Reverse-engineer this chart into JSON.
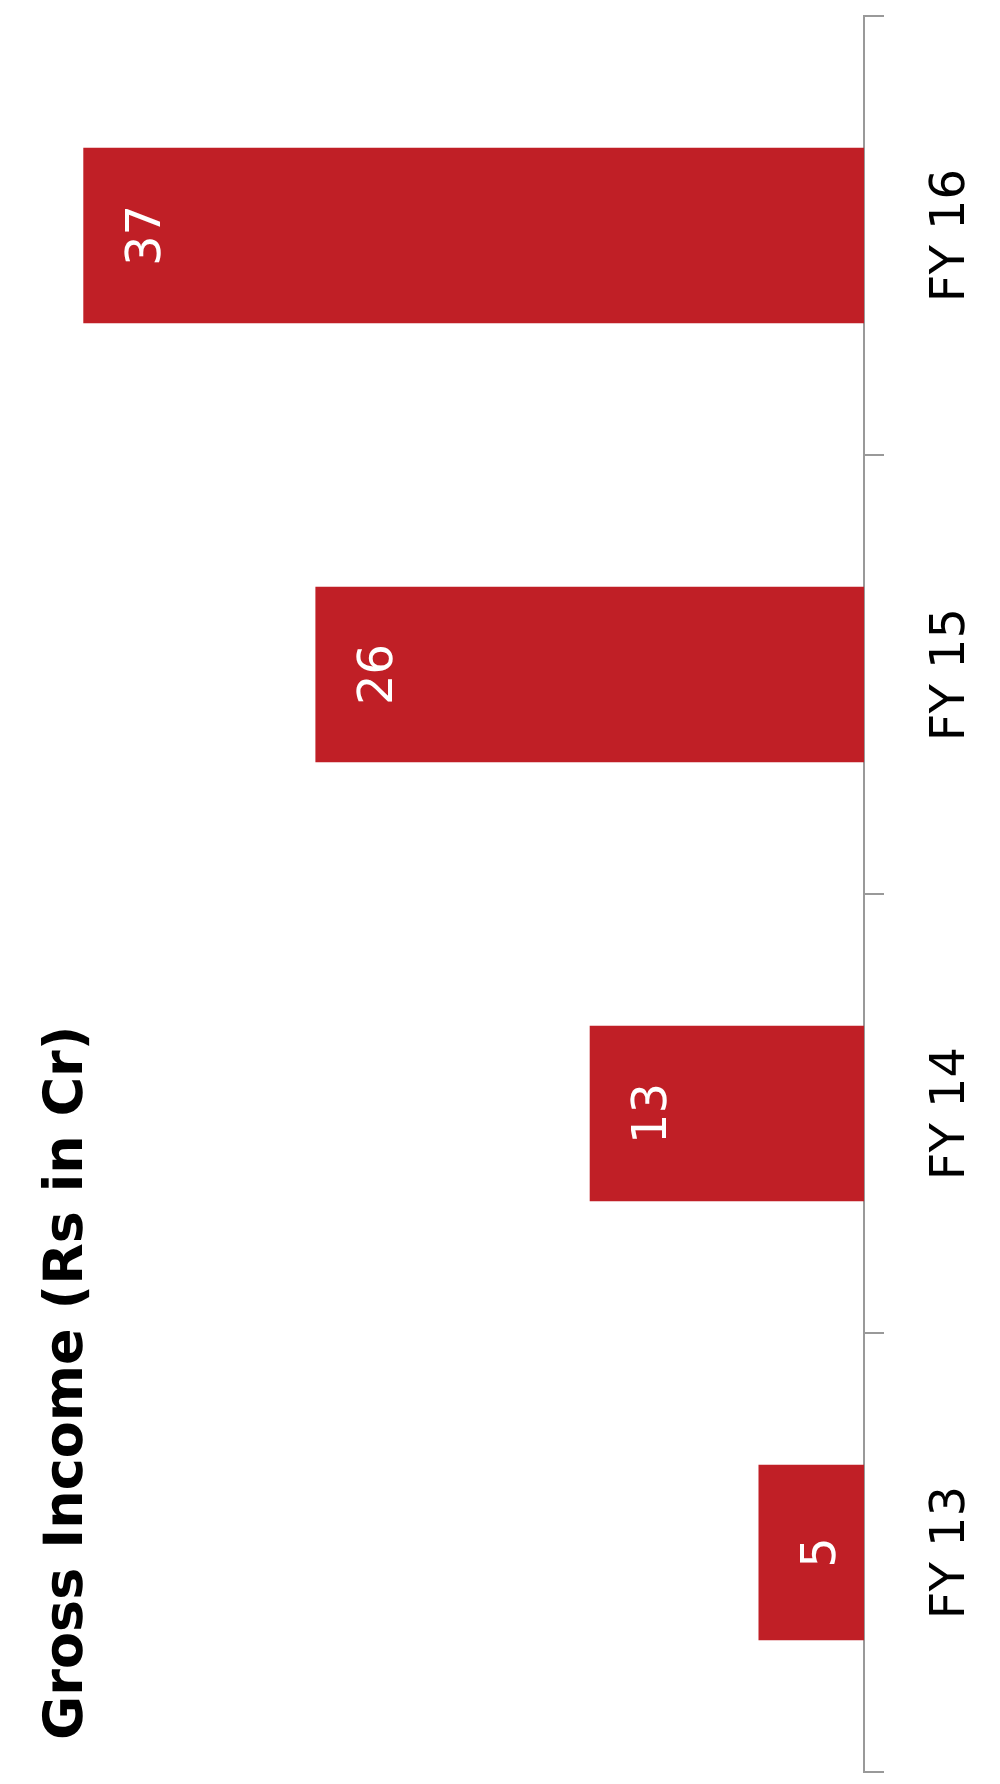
{
  "chart_data": {
    "type": "bar",
    "orientation": "horizontal",
    "title": "Gross Income (Rs in Cr)",
    "categories": [
      "FY 16",
      "FY 15",
      "FY 14",
      "FY 13"
    ],
    "values": [
      37,
      26,
      13,
      5
    ],
    "color": "#c01f26",
    "data_labels": true,
    "legend": false,
    "grid": false
  }
}
